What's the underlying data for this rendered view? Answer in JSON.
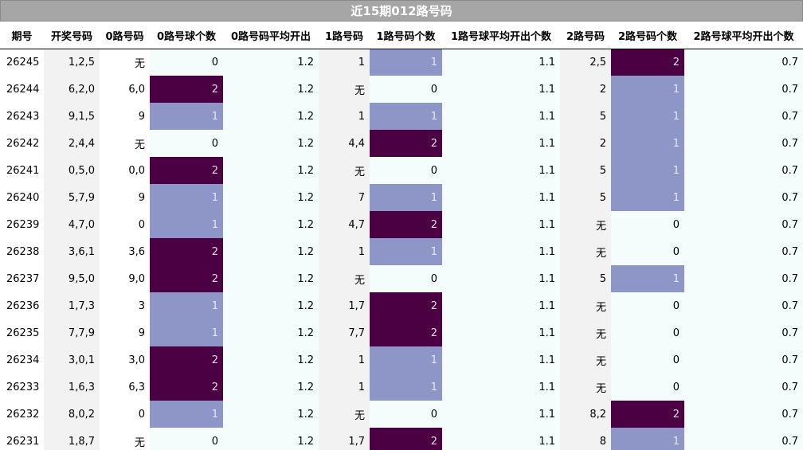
{
  "title": "近15期012路号码",
  "headers": [
    "期号",
    "开奖号码",
    "0路号码",
    "0路号球个数",
    "0路号码平均开出",
    "1路号码",
    "1路号码个数",
    "1路号球平均开出个数",
    "2路号码",
    "2路号码个数",
    "2路号球平均开出个数"
  ],
  "rows": [
    {
      "issue": "26245",
      "draw": "1,2,5",
      "r0": "无",
      "r0c": 0,
      "r0avg": "1.2",
      "r1": "1",
      "r1c": 1,
      "r1avg": "1.1",
      "r2": "2,5",
      "r2c": 2,
      "r2avg": "0.7"
    },
    {
      "issue": "26244",
      "draw": "6,2,0",
      "r0": "6,0",
      "r0c": 2,
      "r0avg": "1.2",
      "r1": "无",
      "r1c": 0,
      "r1avg": "1.1",
      "r2": "2",
      "r2c": 1,
      "r2avg": "0.7"
    },
    {
      "issue": "26243",
      "draw": "9,1,5",
      "r0": "9",
      "r0c": 1,
      "r0avg": "1.2",
      "r1": "1",
      "r1c": 1,
      "r1avg": "1.1",
      "r2": "5",
      "r2c": 1,
      "r2avg": "0.7"
    },
    {
      "issue": "26242",
      "draw": "2,4,4",
      "r0": "无",
      "r0c": 0,
      "r0avg": "1.2",
      "r1": "4,4",
      "r1c": 2,
      "r1avg": "1.1",
      "r2": "2",
      "r2c": 1,
      "r2avg": "0.7"
    },
    {
      "issue": "26241",
      "draw": "0,5,0",
      "r0": "0,0",
      "r0c": 2,
      "r0avg": "1.2",
      "r1": "无",
      "r1c": 0,
      "r1avg": "1.1",
      "r2": "5",
      "r2c": 1,
      "r2avg": "0.7"
    },
    {
      "issue": "26240",
      "draw": "5,7,9",
      "r0": "9",
      "r0c": 1,
      "r0avg": "1.2",
      "r1": "7",
      "r1c": 1,
      "r1avg": "1.1",
      "r2": "5",
      "r2c": 1,
      "r2avg": "0.7"
    },
    {
      "issue": "26239",
      "draw": "4,7,0",
      "r0": "0",
      "r0c": 1,
      "r0avg": "1.2",
      "r1": "4,7",
      "r1c": 2,
      "r1avg": "1.1",
      "r2": "无",
      "r2c": 0,
      "r2avg": "0.7"
    },
    {
      "issue": "26238",
      "draw": "3,6,1",
      "r0": "3,6",
      "r0c": 2,
      "r0avg": "1.2",
      "r1": "1",
      "r1c": 1,
      "r1avg": "1.1",
      "r2": "无",
      "r2c": 0,
      "r2avg": "0.7"
    },
    {
      "issue": "26237",
      "draw": "9,5,0",
      "r0": "9,0",
      "r0c": 2,
      "r0avg": "1.2",
      "r1": "无",
      "r1c": 0,
      "r1avg": "1.1",
      "r2": "5",
      "r2c": 1,
      "r2avg": "0.7"
    },
    {
      "issue": "26236",
      "draw": "1,7,3",
      "r0": "3",
      "r0c": 1,
      "r0avg": "1.2",
      "r1": "1,7",
      "r1c": 2,
      "r1avg": "1.1",
      "r2": "无",
      "r2c": 0,
      "r2avg": "0.7"
    },
    {
      "issue": "26235",
      "draw": "7,7,9",
      "r0": "9",
      "r0c": 1,
      "r0avg": "1.2",
      "r1": "7,7",
      "r1c": 2,
      "r1avg": "1.1",
      "r2": "无",
      "r2c": 0,
      "r2avg": "0.7"
    },
    {
      "issue": "26234",
      "draw": "3,0,1",
      "r0": "3,0",
      "r0c": 2,
      "r0avg": "1.2",
      "r1": "1",
      "r1c": 1,
      "r1avg": "1.1",
      "r2": "无",
      "r2c": 0,
      "r2avg": "0.7"
    },
    {
      "issue": "26233",
      "draw": "1,6,3",
      "r0": "6,3",
      "r0c": 2,
      "r0avg": "1.2",
      "r1": "1",
      "r1c": 1,
      "r1avg": "1.1",
      "r2": "无",
      "r2c": 0,
      "r2avg": "0.7"
    },
    {
      "issue": "26232",
      "draw": "8,0,2",
      "r0": "0",
      "r0c": 1,
      "r0avg": "1.2",
      "r1": "无",
      "r1c": 0,
      "r1avg": "1.1",
      "r2": "8,2",
      "r2c": 2,
      "r2avg": "0.7"
    },
    {
      "issue": "26231",
      "draw": "1,8,7",
      "r0": "无",
      "r0c": 0,
      "r0avg": "1.2",
      "r1": "1,7",
      "r1c": 2,
      "r1avg": "1.1",
      "r2": "8",
      "r2c": 1,
      "r2avg": "0.7"
    }
  ],
  "colors": {
    "count_0": "#f5fcfc",
    "count_1": "#8e96c8",
    "count_2": "#4b0043",
    "title_bar": "#a6a6a6",
    "alt_column": "#f2f2f2"
  }
}
